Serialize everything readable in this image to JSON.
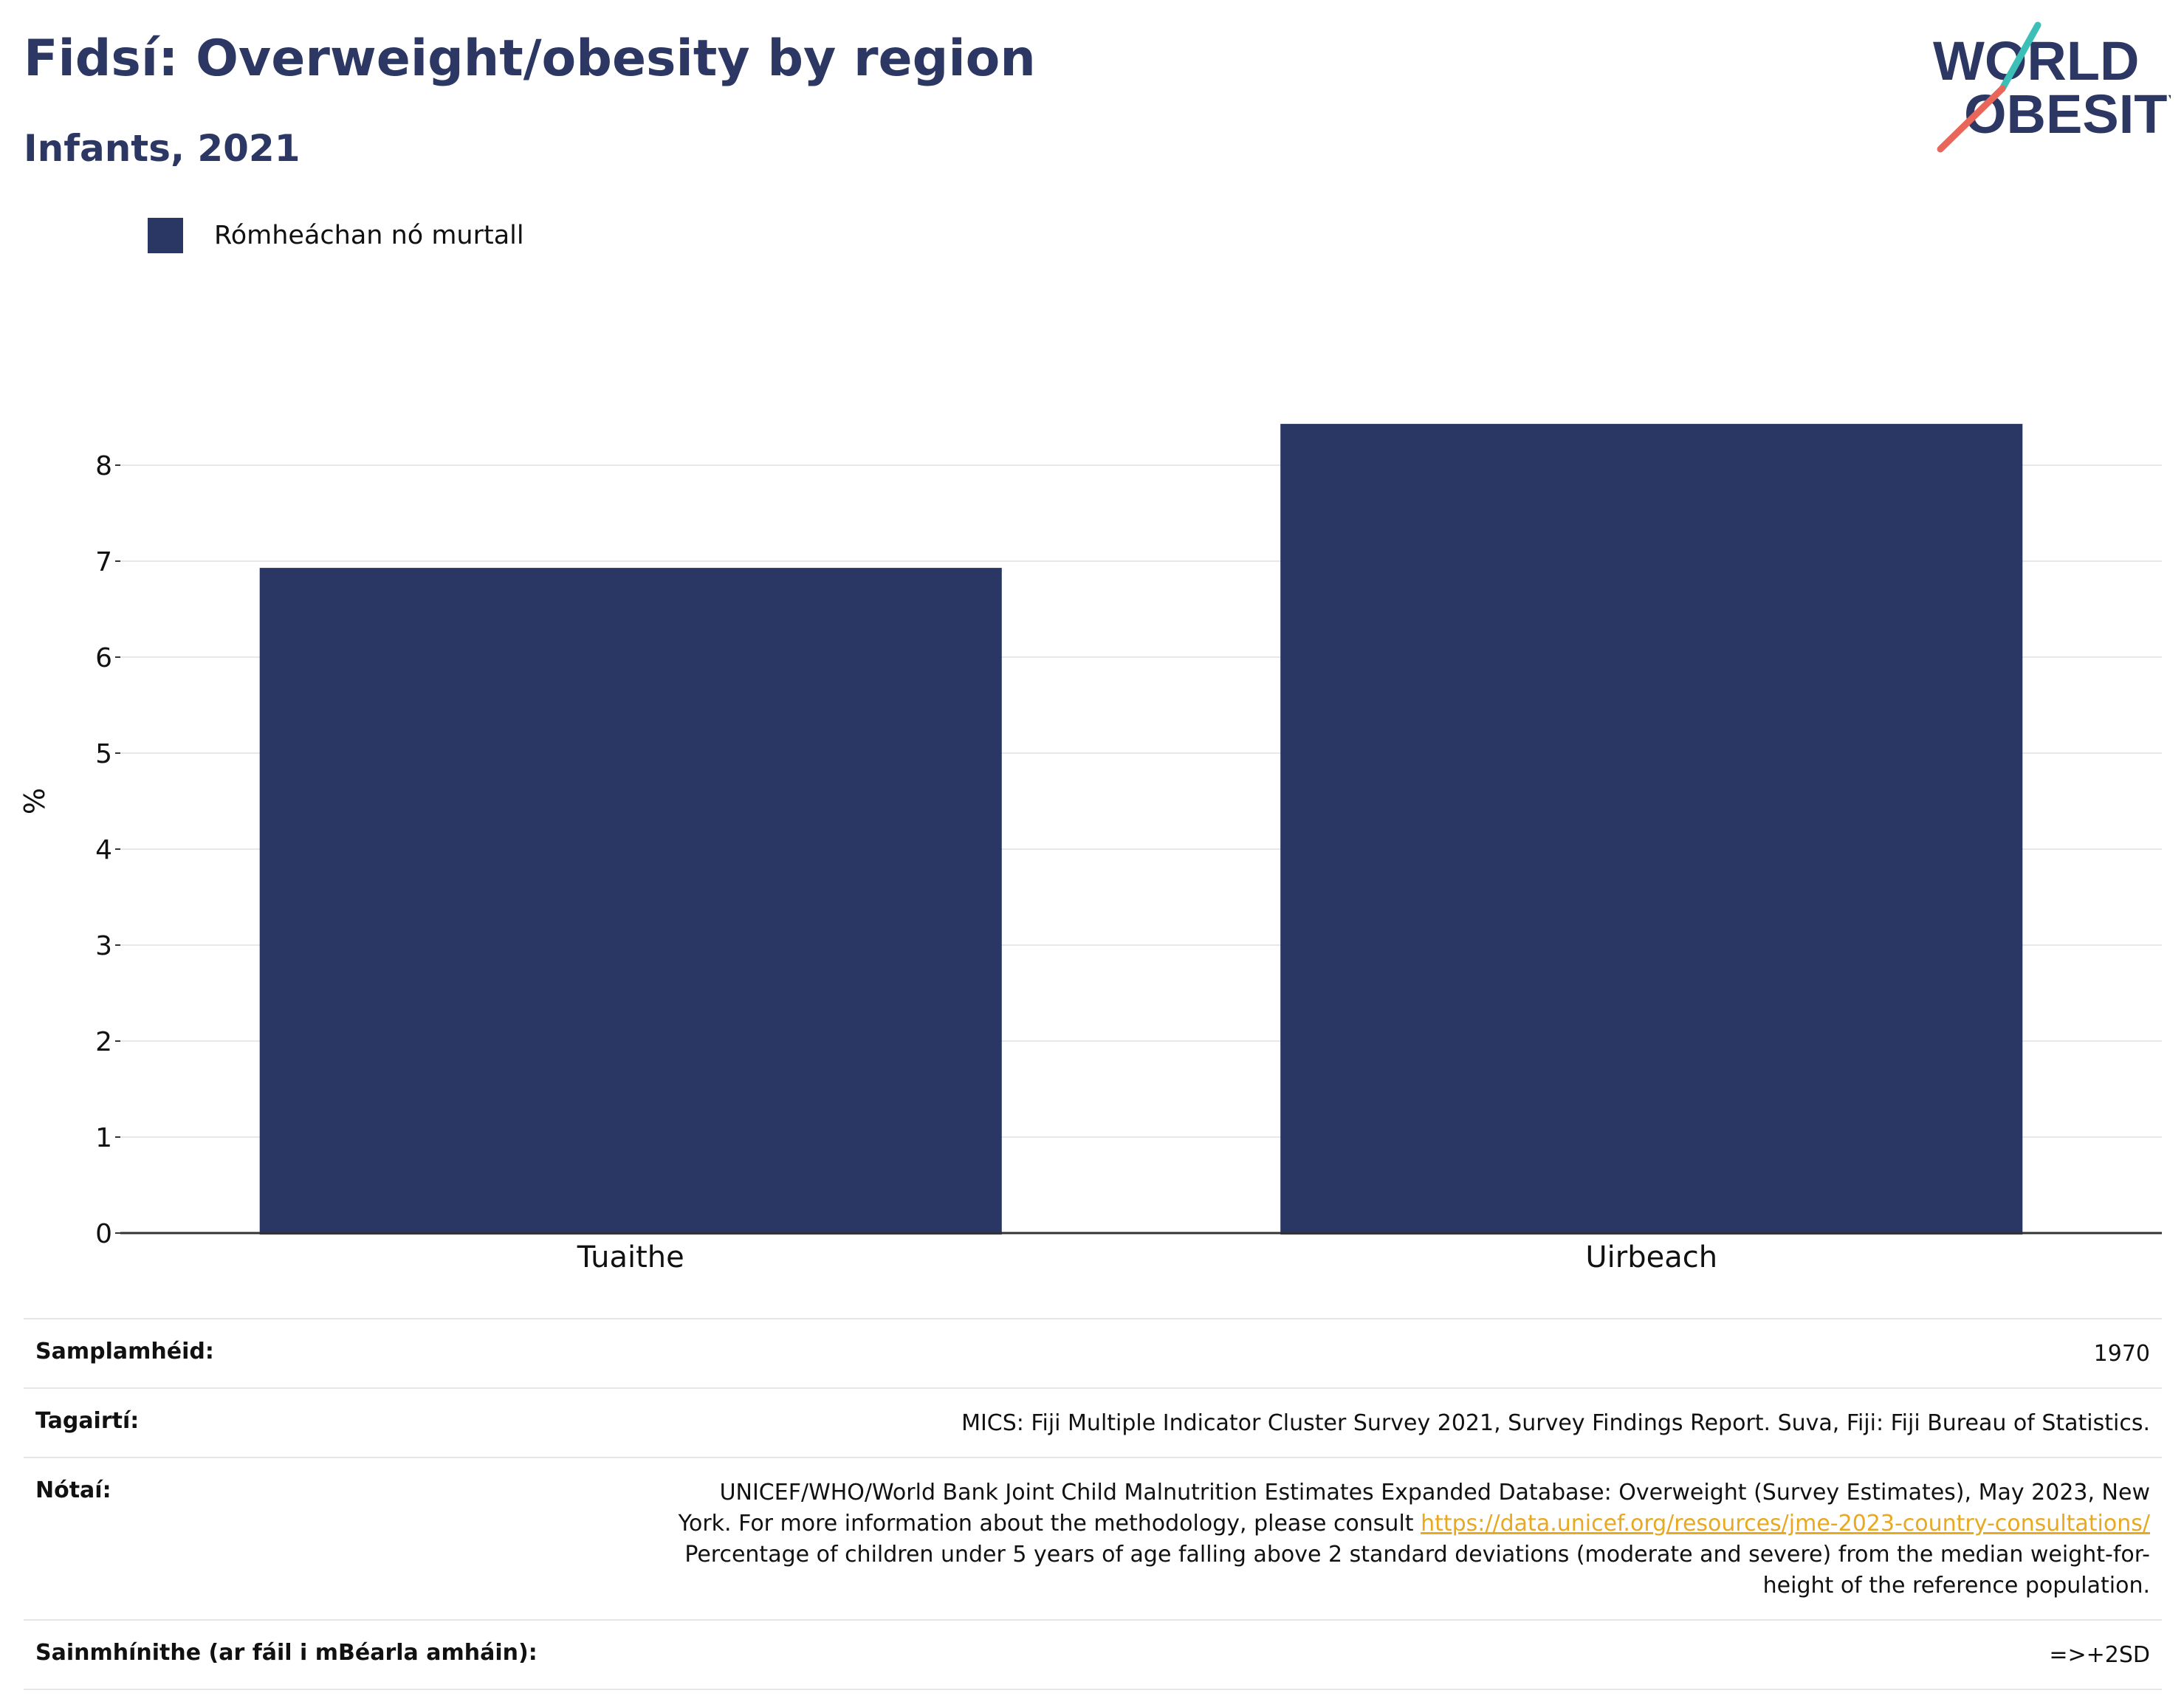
{
  "header": {
    "title": "Fidsí: Overweight/obesity by region",
    "subtitle": "Infants, 2021"
  },
  "logo": {
    "line1": "WORLD",
    "line2": "OBESITY",
    "colors": {
      "text": "#2c3863",
      "slash_teal": "#3bbfb7",
      "slash_red": "#e8665a"
    }
  },
  "legend": {
    "items": [
      {
        "label": "Rómheáchan nó murtall",
        "color": "#2a3663"
      }
    ]
  },
  "chart_data": {
    "type": "bar",
    "categories": [
      "Tuaithe",
      "Uirbeach"
    ],
    "series": [
      {
        "name": "Rómheáchan nó murtall",
        "values": [
          6.93,
          8.43
        ],
        "color": "#2a3663"
      }
    ],
    "ylabel": "%",
    "xlabel": "",
    "ylim": [
      0,
      9
    ],
    "yticks": [
      0,
      1,
      2,
      3,
      4,
      5,
      6,
      7,
      8
    ],
    "grid": true
  },
  "meta": {
    "rows": [
      {
        "key": "Samplamhéid:",
        "value": "1970"
      },
      {
        "key": "Tagairtí:",
        "value": "MICS: Fiji Multiple Indicator Cluster Survey 2021, Survey Findings Report. Suva, Fiji: Fiji Bureau of Statistics."
      },
      {
        "key": "Nótaí:",
        "line1": "UNICEF/WHO/World Bank Joint Child Malnutrition Estimates Expanded Database: Overweight (Survey Estimates), May 2023, New",
        "line2_text": "York. For more information about the methodology, please consult ",
        "line2_link": "https://data.unicef.org/resources/jme-2023-country-consultations/",
        "line3": "Percentage of children under 5 years of age falling above 2 standard deviations (moderate and severe) from the median weight-for-",
        "line4": "height of the reference population."
      },
      {
        "key": "Sainmhínithe (ar fáil i mBéarla amháin):",
        "value": "=>+2SD"
      }
    ]
  }
}
